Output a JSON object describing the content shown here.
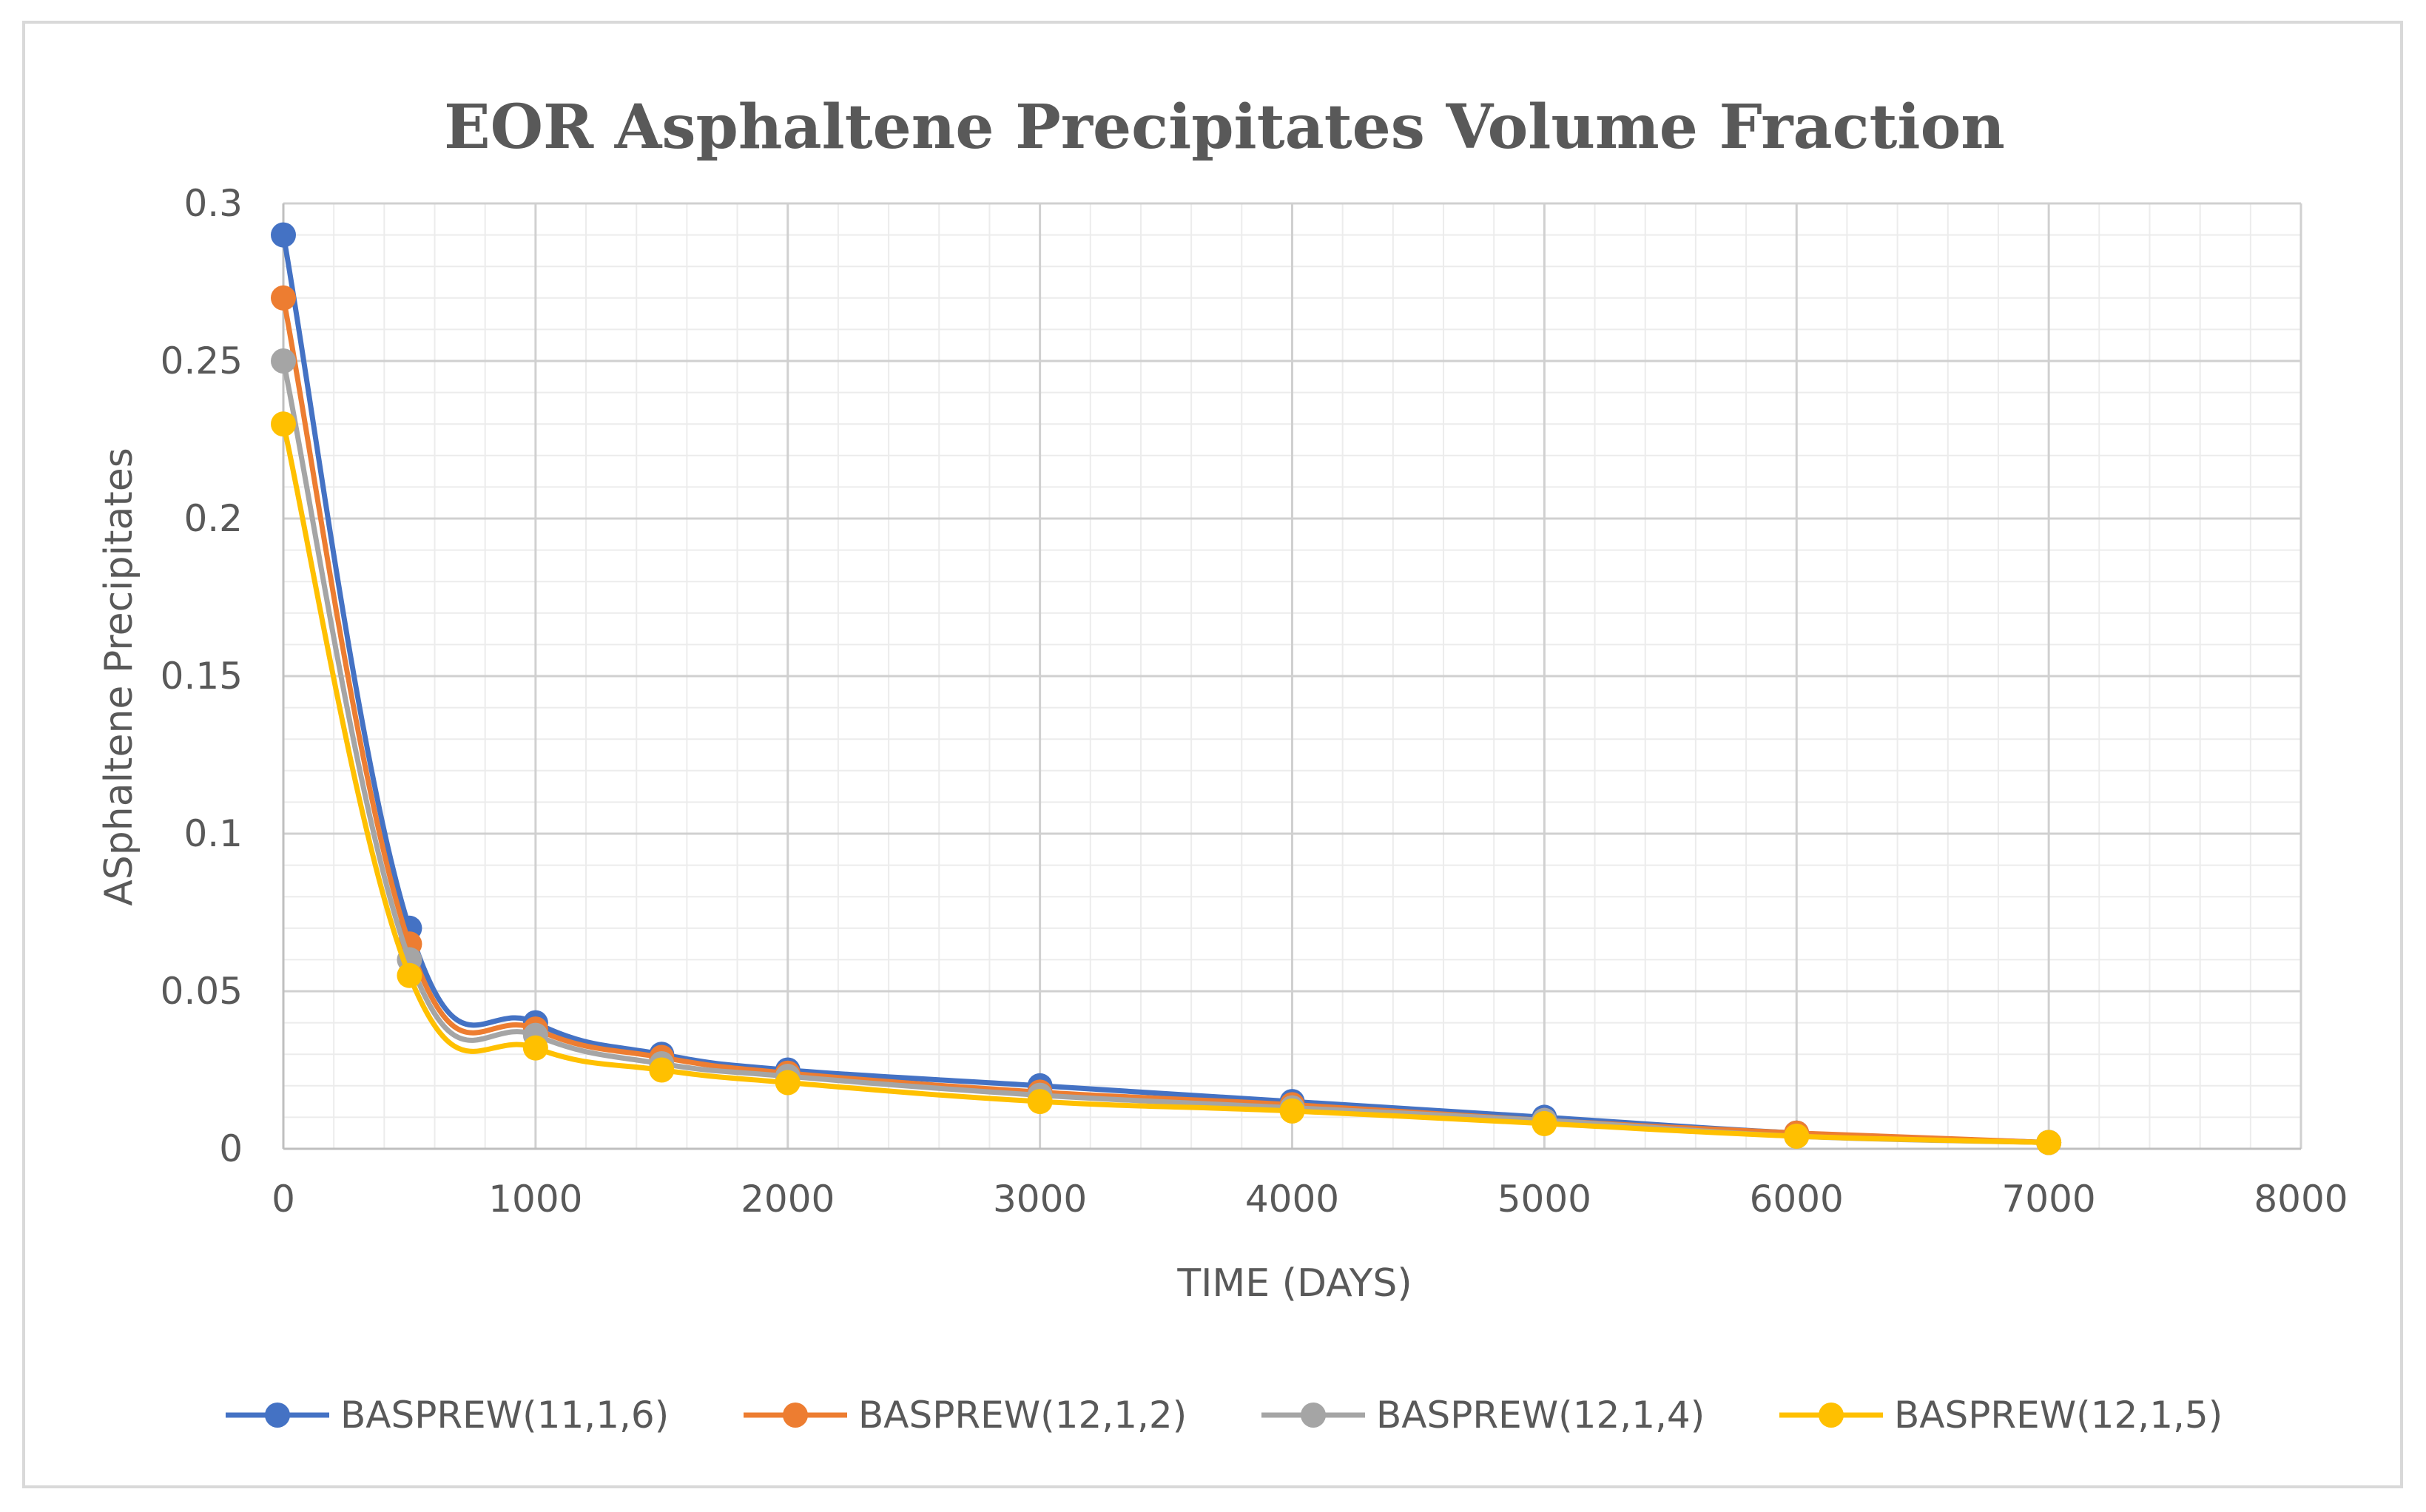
{
  "chart_data": {
    "type": "line",
    "title": "EOR Asphaltene Precipitates Volume Fraction",
    "xlabel": "TIME (DAYS)",
    "ylabel": "ASphaltene Precipitates",
    "xlim": [
      0,
      8000
    ],
    "ylim": [
      0,
      0.3
    ],
    "x_ticks": [
      "0",
      "1000",
      "2000",
      "3000",
      "4000",
      "5000",
      "6000",
      "7000",
      "8000"
    ],
    "y_ticks": [
      "0",
      "0.05",
      "0.1",
      "0.15",
      "0.2",
      "0.25",
      "0.3"
    ],
    "grid": true,
    "legend_position": "bottom",
    "x": [
      0,
      500,
      1000,
      1500,
      2000,
      3000,
      4000,
      5000,
      6000,
      7000
    ],
    "series": [
      {
        "name": "BASPREW(11,1,6)",
        "color": "#4472C4",
        "values": [
          0.29,
          0.07,
          0.04,
          0.03,
          0.025,
          0.02,
          0.015,
          0.01,
          0.005,
          0.002
        ]
      },
      {
        "name": "BASPREW(12,1,2)",
        "color": "#ED7D31",
        "values": [
          0.27,
          0.065,
          0.038,
          0.029,
          0.024,
          0.018,
          0.014,
          0.009,
          0.005,
          0.002
        ]
      },
      {
        "name": "BASPREW(12,1,4)",
        "color": "#A5A5A5",
        "values": [
          0.25,
          0.06,
          0.036,
          0.027,
          0.023,
          0.017,
          0.013,
          0.009,
          0.004,
          0.002
        ]
      },
      {
        "name": "BASPREW(12,1,5)",
        "color": "#FFC000",
        "values": [
          0.23,
          0.055,
          0.032,
          0.025,
          0.021,
          0.015,
          0.012,
          0.008,
          0.004,
          0.002
        ]
      }
    ]
  }
}
